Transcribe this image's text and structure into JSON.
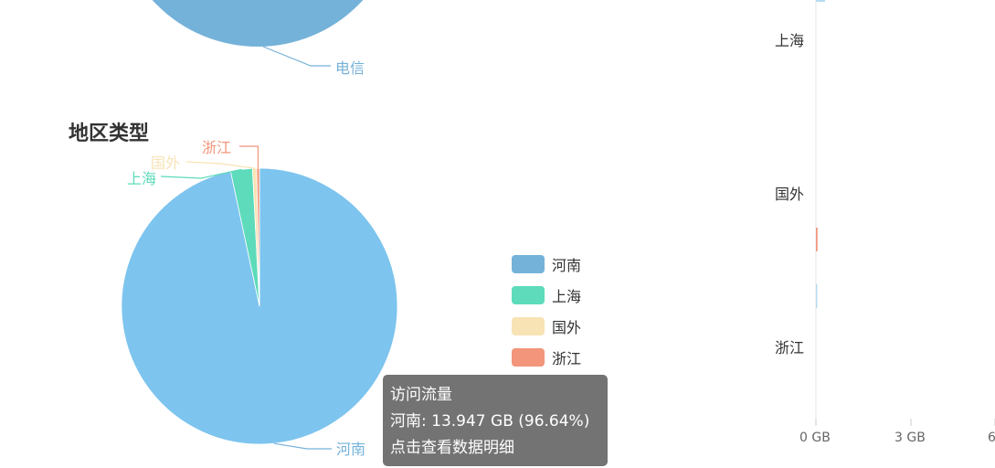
{
  "sections": {
    "region_title": "地区类型"
  },
  "top_pie": {
    "partial_label": "电信",
    "color": "#75b2d9"
  },
  "chart_data": [
    {
      "type": "pie",
      "title": "地区类型",
      "series_name": "访问流量",
      "categories": [
        "河南",
        "上海",
        "国外",
        "浙江"
      ],
      "values": [
        96.64,
        2.55,
        0.48,
        0.33
      ],
      "colors": [
        "#7dc4ee",
        "#5ddbbb",
        "#f8e3b5",
        "#f2957a"
      ],
      "legend": [
        "河南",
        "上海",
        "国外",
        "浙江"
      ],
      "legend_colors": [
        "#75b2d9",
        "#5ddbbb",
        "#f8e3b5",
        "#f2957a"
      ],
      "label_colors": [
        "#75b2d9",
        "#5ddbbb",
        "#f8e3b5",
        "#f2957a"
      ],
      "legend_position": "right"
    },
    {
      "type": "bar",
      "orientation": "horizontal",
      "categories": [
        "上海",
        "国外",
        "浙江"
      ],
      "x_ticks": [
        "0 GB",
        "3 GB",
        "6"
      ],
      "bars": [
        {
          "category": "国外",
          "value": 0.05,
          "color": "#f2957a"
        },
        {
          "category": "浙江",
          "value": 0.02,
          "color": "#b8ddf2"
        }
      ]
    }
  ],
  "tooltip": {
    "title": "访问流量",
    "detail": "河南: 13.947 GB (96.64%)",
    "hint": "点击查看数据明细"
  }
}
